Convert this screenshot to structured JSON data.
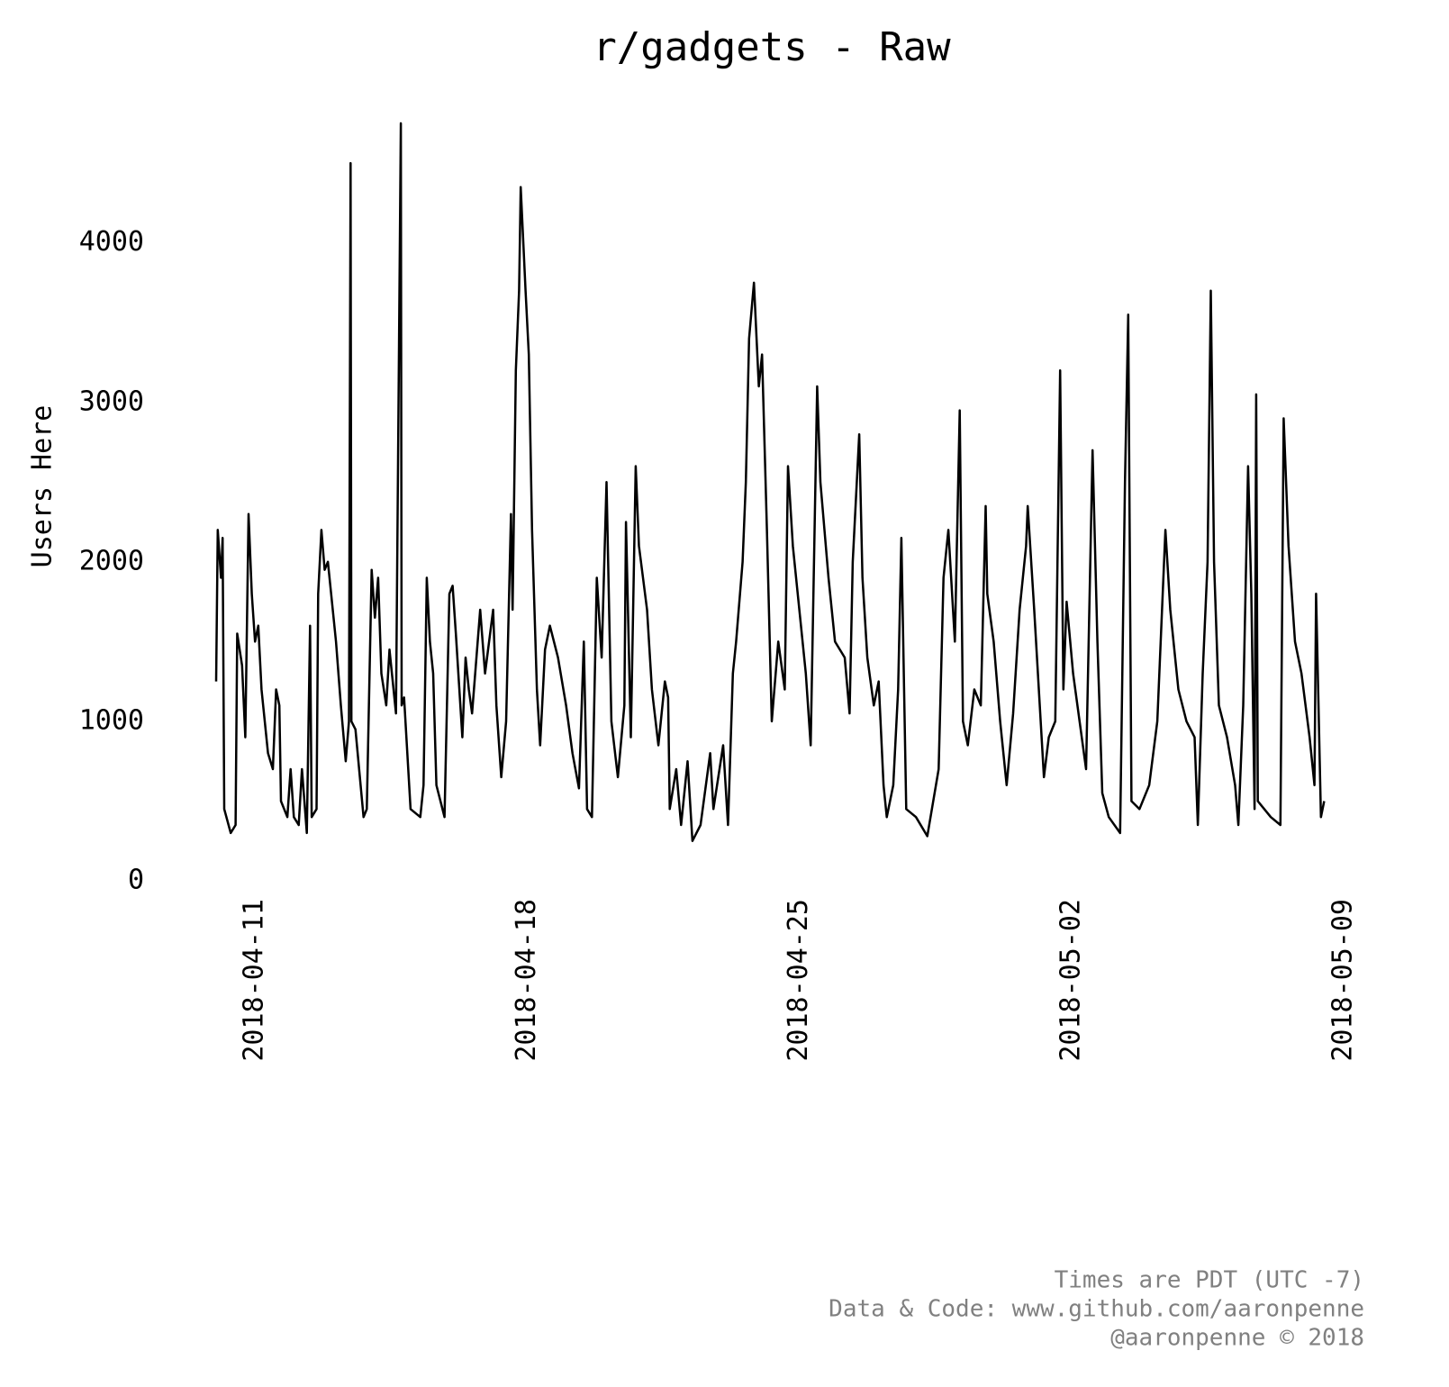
{
  "chart_data": {
    "type": "line",
    "title": "r/gadgets - Raw",
    "ylabel": "Users Here",
    "xlim": [
      "2018-04-10",
      "2018-05-09"
    ],
    "xticks": [
      "2018-04-11",
      "2018-04-18",
      "2018-04-25",
      "2018-05-02",
      "2018-05-09"
    ],
    "ylim": [
      0,
      4800
    ],
    "yticks": [
      0,
      1000,
      2000,
      3000,
      4000
    ],
    "grid": false,
    "footer": [
      "Times are PDT (UTC -7)",
      "Data & Code: www.github.com/aaronpenne",
      "@aaronpenne © 2018"
    ],
    "x": [
      "2018-04-10 00:00",
      "2018-04-10 01:00",
      "2018-04-10 03:00",
      "2018-04-10 04:00",
      "2018-04-10 05:00",
      "2018-04-10 09:00",
      "2018-04-10 12:00",
      "2018-04-10 13:00",
      "2018-04-10 16:00",
      "2018-04-10 18:00",
      "2018-04-10 20:00",
      "2018-04-10 22:00",
      "2018-04-11 00:00",
      "2018-04-11 02:00",
      "2018-04-11 04:00",
      "2018-04-11 08:00",
      "2018-04-11 11:00",
      "2018-04-11 13:00",
      "2018-04-11 15:00",
      "2018-04-11 16:00",
      "2018-04-11 20:00",
      "2018-04-11 22:00",
      "2018-04-12 00:00",
      "2018-04-12 03:00",
      "2018-04-12 05:00",
      "2018-04-12 08:00",
      "2018-04-12 10:00",
      "2018-04-12 11:00",
      "2018-04-12 14:00",
      "2018-04-12 15:00",
      "2018-04-12 17:00",
      "2018-04-12 19:00",
      "2018-04-12 21:00",
      "2018-04-13 02:00",
      "2018-04-13 05:00",
      "2018-04-13 08:00",
      "2018-04-13 10:00",
      "2018-04-13 11:00",
      "2018-04-13 11:30",
      "2018-04-13 14:00",
      "2018-04-13 19:00",
      "2018-04-13 21:00",
      "2018-04-14 00:00",
      "2018-04-14 02:00",
      "2018-04-14 04:00",
      "2018-04-14 06:00",
      "2018-04-14 09:00",
      "2018-04-14 11:00",
      "2018-04-14 15:00",
      "2018-04-14 18:00",
      "2018-04-14 18:30",
      "2018-04-14 20:00",
      "2018-04-15 00:00",
      "2018-04-15 06:00",
      "2018-04-15 08:00",
      "2018-04-15 10:00",
      "2018-04-15 12:00",
      "2018-04-15 14:00",
      "2018-04-15 16:00",
      "2018-04-15 21:00",
      "2018-04-16 00:00",
      "2018-04-16 02:00",
      "2018-04-16 04:00",
      "2018-04-16 08:00",
      "2018-04-16 10:00",
      "2018-04-16 12:00",
      "2018-04-16 14:00",
      "2018-04-16 19:00",
      "2018-04-16 22:00",
      "2018-04-17 03:00",
      "2018-04-17 05:00",
      "2018-04-17 08:00",
      "2018-04-17 11:00",
      "2018-04-17 14:00",
      "2018-04-17 15:00",
      "2018-04-17 17:00",
      "2018-04-17 19:00",
      "2018-04-17 20:00",
      "2018-04-17 23:00",
      "2018-04-18 01:00",
      "2018-04-18 03:00",
      "2018-04-18 06:00",
      "2018-04-18 08:00",
      "2018-04-18 11:00",
      "2018-04-18 14:00",
      "2018-04-18 19:00",
      "2018-04-19 00:00",
      "2018-04-19 04:00",
      "2018-04-19 08:00",
      "2018-04-19 11:00",
      "2018-04-19 13:00",
      "2018-04-19 16:00",
      "2018-04-19 19:00",
      "2018-04-19 22:00",
      "2018-04-20 01:00",
      "2018-04-20 04:00",
      "2018-04-20 08:00",
      "2018-04-20 12:00",
      "2018-04-20 13:00",
      "2018-04-20 16:00",
      "2018-04-20 19:00",
      "2018-04-20 21:00",
      "2018-04-21 02:00",
      "2018-04-21 05:00",
      "2018-04-21 09:00",
      "2018-04-21 13:00",
      "2018-04-21 15:00",
      "2018-04-21 16:00",
      "2018-04-21 20:00",
      "2018-04-21 23:00",
      "2018-04-22 03:00",
      "2018-04-22 06:00",
      "2018-04-22 11:00",
      "2018-04-22 17:00",
      "2018-04-22 19:00",
      "2018-04-23 01:00",
      "2018-04-23 04:00",
      "2018-04-23 07:00",
      "2018-04-23 09:00",
      "2018-04-23 13:00",
      "2018-04-23 15:00",
      "2018-04-23 17:00",
      "2018-04-23 20:00",
      "2018-04-23 23:00",
      "2018-04-24 01:00",
      "2018-04-24 04:00",
      "2018-04-24 07:00",
      "2018-04-24 11:00",
      "2018-04-24 15:00",
      "2018-04-24 17:00",
      "2018-04-24 20:00",
      "2018-04-25 00:00",
      "2018-04-25 04:00",
      "2018-04-25 07:00",
      "2018-04-25 11:00",
      "2018-04-25 13:00",
      "2018-04-25 18:00",
      "2018-04-25 22:00",
      "2018-04-26 04:00",
      "2018-04-26 07:00",
      "2018-04-26 09:00",
      "2018-04-26 13:00",
      "2018-04-26 15:00",
      "2018-04-26 18:00",
      "2018-04-26 22:00",
      "2018-04-27 01:00",
      "2018-04-27 04:00",
      "2018-04-27 06:00",
      "2018-04-27 10:00",
      "2018-04-27 13:00",
      "2018-04-27 15:00",
      "2018-04-27 18:00",
      "2018-04-28 00:00",
      "2018-04-28 07:00",
      "2018-04-28 14:00",
      "2018-04-28 17:00",
      "2018-04-28 20:00",
      "2018-04-29 00:00",
      "2018-04-29 03:00",
      "2018-04-29 05:00",
      "2018-04-29 08:00",
      "2018-04-29 12:00",
      "2018-04-29 16:00",
      "2018-04-29 19:00",
      "2018-04-29 20:00",
      "2018-04-30 00:00",
      "2018-04-30 04:00",
      "2018-04-30 08:00",
      "2018-04-30 12:00",
      "2018-04-30 16:00",
      "2018-04-30 20:00",
      "2018-04-30 21:00",
      "2018-05-01 01:00",
      "2018-05-01 05:00",
      "2018-05-01 07:00",
      "2018-05-01 10:00",
      "2018-05-01 14:00",
      "2018-05-01 17:00",
      "2018-05-01 19:00",
      "2018-05-01 21:00",
      "2018-05-02 01:00",
      "2018-05-02 05:00",
      "2018-05-02 09:00",
      "2018-05-02 13:00",
      "2018-05-02 16:00",
      "2018-05-02 19:00",
      "2018-05-02 23:00",
      "2018-05-03 06:00",
      "2018-05-03 09:00",
      "2018-05-03 11:00",
      "2018-05-03 13:00",
      "2018-05-03 18:00",
      "2018-05-04 00:00",
      "2018-05-04 05:00",
      "2018-05-04 10:00",
      "2018-05-04 13:00",
      "2018-05-04 18:00",
      "2018-05-04 23:00",
      "2018-05-05 04:00",
      "2018-05-05 06:00",
      "2018-05-05 09:00",
      "2018-05-05 12:00",
      "2018-05-05 14:00",
      "2018-05-05 16:00",
      "2018-05-05 19:00",
      "2018-05-06 00:00",
      "2018-05-06 05:00",
      "2018-05-06 07:00",
      "2018-05-06 10:00",
      "2018-05-06 13:00",
      "2018-05-06 15:00",
      "2018-05-06 17:00",
      "2018-05-06 18:00",
      "2018-05-06 19:00",
      "2018-05-07 03:00",
      "2018-05-07 09:00",
      "2018-05-07 11:00",
      "2018-05-07 14:00",
      "2018-05-07 18:00",
      "2018-05-07 22:00",
      "2018-05-08 03:00",
      "2018-05-08 06:00",
      "2018-05-08 07:00",
      "2018-05-08 10:00",
      "2018-05-08 12:00"
    ],
    "series": [
      {
        "color": "#000000",
        "values": [
          1250,
          2200,
          1900,
          2150,
          450,
          300,
          350,
          1550,
          1350,
          900,
          2300,
          1800,
          1500,
          1600,
          1200,
          800,
          700,
          1200,
          1100,
          500,
          400,
          700,
          400,
          350,
          700,
          300,
          1600,
          400,
          450,
          1800,
          2200,
          1950,
          2000,
          1500,
          1100,
          750,
          1000,
          4500,
          1000,
          950,
          400,
          450,
          1950,
          1650,
          1900,
          1300,
          1100,
          1450,
          1050,
          4750,
          1100,
          1150,
          450,
          400,
          600,
          1900,
          1500,
          1300,
          600,
          400,
          1800,
          1850,
          1550,
          900,
          1400,
          1200,
          1050,
          1700,
          1300,
          1700,
          1100,
          650,
          1000,
          2300,
          1700,
          3200,
          3700,
          4350,
          3700,
          3300,
          2200,
          1200,
          850,
          1450,
          1600,
          1400,
          1100,
          800,
          580,
          1500,
          450,
          400,
          1900,
          1400,
          2500,
          1000,
          650,
          1100,
          2250,
          900,
          2600,
          2100,
          1700,
          1200,
          850,
          1250,
          1150,
          450,
          700,
          350,
          750,
          250,
          350,
          800,
          450,
          850,
          350,
          1300,
          1500,
          2000,
          2500,
          3400,
          3750,
          3100,
          3300,
          2200,
          1000,
          1500,
          1200,
          2600,
          2100,
          1700,
          1300,
          850,
          3100,
          2500,
          1900,
          1500,
          1400,
          1050,
          2000,
          2800,
          1900,
          1400,
          1100,
          1250,
          600,
          400,
          600,
          1200,
          2150,
          450,
          400,
          280,
          700,
          1900,
          2200,
          1500,
          2950,
          1000,
          850,
          1200,
          1100,
          2350,
          1800,
          1500,
          1000,
          600,
          1050,
          1700,
          2100,
          2350,
          1700,
          1000,
          650,
          900,
          1000,
          3200,
          1200,
          1750,
          1300,
          1000,
          700,
          2700,
          1500,
          550,
          400,
          300,
          2500,
          3550,
          500,
          450,
          600,
          1000,
          2200,
          1700,
          1200,
          1000,
          900,
          350,
          1300,
          2000,
          3700,
          2000,
          1100,
          900,
          600,
          350,
          1100,
          2600,
          1800,
          450,
          3050,
          500,
          400,
          350,
          2900,
          2100,
          1500,
          1300,
          900,
          600,
          1800,
          400,
          500
        ]
      }
    ]
  }
}
